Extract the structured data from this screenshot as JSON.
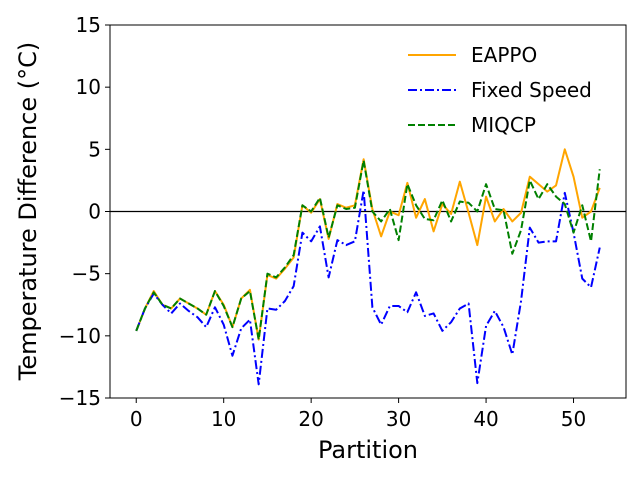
{
  "chart_data": {
    "type": "line",
    "title": "",
    "xlabel": "Partition",
    "ylabel": "Temperature Difference (°C)",
    "xlim": [
      -3,
      56
    ],
    "ylim": [
      -15,
      15
    ],
    "xticks": [
      0,
      10,
      20,
      30,
      40,
      50
    ],
    "yticks": [
      -15,
      -10,
      -5,
      0,
      5,
      10,
      15
    ],
    "xtick_labels": [
      "0",
      "10",
      "20",
      "30",
      "40",
      "50"
    ],
    "ytick_labels": [
      "−15",
      "−10",
      "−5",
      "0",
      "5",
      "10",
      "15"
    ],
    "grid": false,
    "reference_line": {
      "y": 0,
      "color": "#000000"
    },
    "legend": {
      "position": "top-right"
    },
    "x": [
      0,
      1,
      2,
      3,
      4,
      5,
      6,
      7,
      8,
      9,
      10,
      11,
      12,
      13,
      14,
      15,
      16,
      17,
      18,
      19,
      20,
      21,
      22,
      23,
      24,
      25,
      26,
      27,
      28,
      29,
      30,
      31,
      32,
      33,
      34,
      35,
      36,
      37,
      38,
      39,
      40,
      41,
      42,
      43,
      44,
      45,
      46,
      47,
      48,
      49,
      50,
      51,
      52,
      53
    ],
    "series": [
      {
        "name": "EAPPO",
        "color": "#ffa500",
        "style": "solid",
        "values": [
          -9.6,
          -7.8,
          -6.4,
          -7.5,
          -7.8,
          -7.0,
          -7.4,
          -7.8,
          -8.3,
          -6.4,
          -7.5,
          -9.3,
          -7.0,
          -6.3,
          -10.3,
          -5.1,
          -5.4,
          -4.6,
          -3.7,
          0.5,
          -0.1,
          1.0,
          -2.2,
          0.6,
          0.3,
          0.5,
          4.2,
          0.2,
          -2.0,
          0.0,
          -0.3,
          2.3,
          -0.5,
          1.0,
          -1.6,
          0.6,
          -0.2,
          2.4,
          -0.1,
          -2.7,
          1.2,
          -0.8,
          0.2,
          -0.8,
          -0.1,
          2.8,
          2.2,
          1.6,
          2.1,
          5.0,
          2.8,
          -0.5,
          0.0,
          1.9
        ]
      },
      {
        "name": "Fixed Speed",
        "color": "#0000ff",
        "style": "dashdot",
        "values": [
          -9.6,
          -7.8,
          -6.6,
          -7.5,
          -8.2,
          -7.4,
          -8.0,
          -8.5,
          -9.3,
          -7.7,
          -9.1,
          -11.6,
          -9.4,
          -8.7,
          -13.9,
          -7.8,
          -7.9,
          -7.2,
          -6.0,
          -1.7,
          -2.4,
          -1.2,
          -5.3,
          -2.3,
          -2.7,
          -2.4,
          1.7,
          -7.7,
          -9.1,
          -7.6,
          -7.6,
          -8.1,
          -6.5,
          -8.4,
          -8.2,
          -9.6,
          -8.9,
          -7.8,
          -7.4,
          -13.8,
          -9.2,
          -8.0,
          -9.3,
          -11.5,
          -7.2,
          -1.3,
          -2.5,
          -2.4,
          -2.4,
          1.5,
          -1.7,
          -5.4,
          -6.1,
          -2.9
        ]
      },
      {
        "name": "MIQCP",
        "color": "#008000",
        "style": "dashed",
        "values": [
          -9.6,
          -7.8,
          -6.5,
          -7.5,
          -7.8,
          -7.0,
          -7.4,
          -7.8,
          -8.3,
          -6.4,
          -7.6,
          -9.3,
          -7.0,
          -6.4,
          -10.3,
          -5.0,
          -5.3,
          -4.5,
          -3.5,
          0.5,
          0.0,
          1.1,
          -2.1,
          0.5,
          0.2,
          0.3,
          4.1,
          0.0,
          -0.8,
          0.2,
          -2.3,
          2.2,
          0.5,
          -0.6,
          -0.7,
          0.9,
          -0.8,
          0.8,
          0.7,
          0.0,
          2.2,
          0.2,
          0.1,
          -3.4,
          -1.5,
          2.5,
          1.0,
          2.2,
          1.2,
          0.6,
          -1.7,
          0.5,
          -2.4,
          3.4
        ]
      }
    ]
  }
}
